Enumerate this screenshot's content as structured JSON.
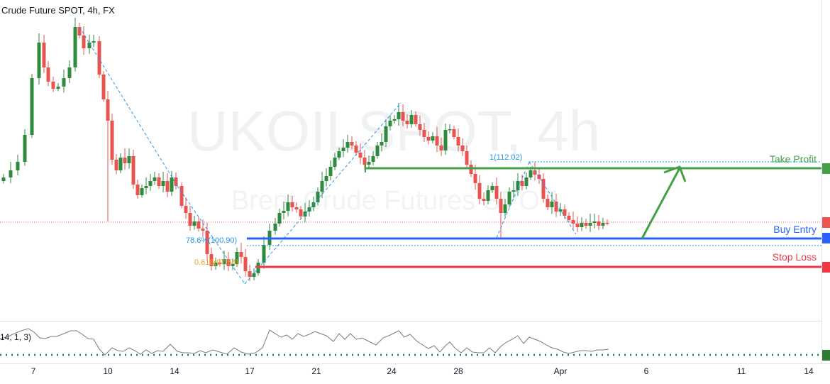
{
  "header": {
    "title": "Crude Future SPOT, 4h, FX"
  },
  "watermark": {
    "line1": "UKOILSPOT, 4h",
    "line2": "Brent Crude Futures SPOT"
  },
  "annotations": {
    "take_profit": "Take Profit",
    "buy_entry": "Buy Entry",
    "stop_loss": "Stop Loss",
    "fib_786": "78.6%(100.90)",
    "fib_618": "0.618(97.54)",
    "fib_1": "1(112.02)"
  },
  "rsi": {
    "label": "14, 1, 3)"
  },
  "colors": {
    "up": "#26a69a",
    "down": "#ef5350",
    "up_candle": "#2e8b3e",
    "down_candle": "#e8534e",
    "take_profit": "#43a047",
    "buy_entry": "#2962ff",
    "stop_loss": "#f23645",
    "fib": "#2196f3",
    "fib_618": "#f7a21b"
  },
  "chart_data": {
    "type": "candlestick",
    "title": "Crude Future SPOT, 4h, FX",
    "x_ticks": [
      "7",
      "10",
      "14",
      "17",
      "21",
      "24",
      "28",
      "Apr",
      "6",
      "11",
      "14"
    ],
    "levels": {
      "take_profit": 112.02,
      "buy_entry": 100.9,
      "stop_loss": 97.54
    },
    "y_unit": "USD"
  }
}
